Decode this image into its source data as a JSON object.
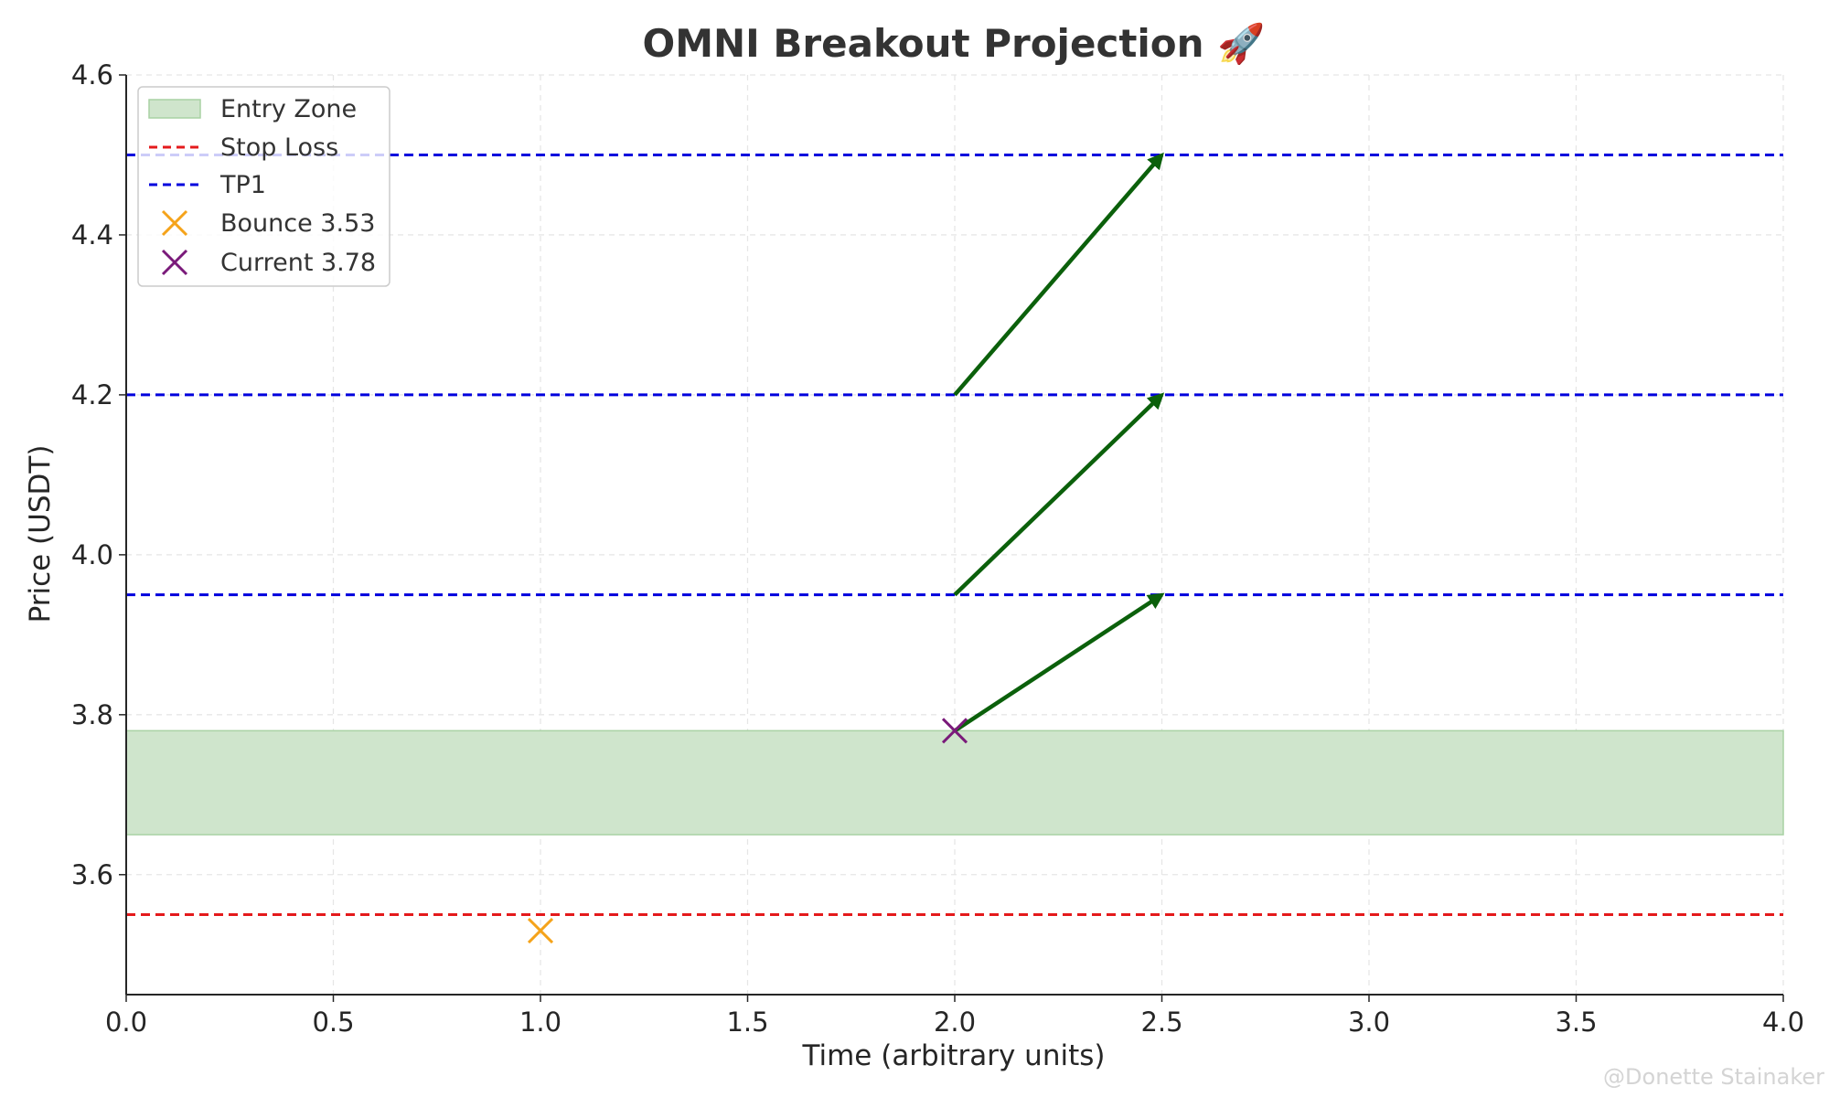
{
  "chart_data": {
    "type": "line",
    "title": "OMNI Breakout Projection 🚀",
    "xlabel": "Time (arbitrary units)",
    "ylabel": "Price (USDT)",
    "xlim": [
      0,
      4
    ],
    "ylim": [
      3.45,
      4.6
    ],
    "xticks": [
      "0.0",
      "0.5",
      "1.0",
      "1.5",
      "2.0",
      "2.5",
      "3.0",
      "3.5",
      "4.0"
    ],
    "yticks": [
      "3.6",
      "3.8",
      "4.0",
      "4.2",
      "4.4",
      "4.6"
    ],
    "grid": true,
    "legend_position": "upper-left",
    "entry_zone": {
      "label": "Entry Zone",
      "low": 3.65,
      "high": 3.78,
      "color": "#cfe5cc"
    },
    "stop_loss": {
      "label": "Stop Loss",
      "value": 3.55,
      "color": "#e41a1c"
    },
    "take_profits": {
      "label": "TP1",
      "color": "#0000dd",
      "values": [
        3.95,
        4.2,
        4.5
      ]
    },
    "points": [
      {
        "label": "Bounce 3.53",
        "x": 1.0,
        "y": 3.53,
        "color": "#f5a31a",
        "marker": "x"
      },
      {
        "label": "Current 3.78",
        "x": 2.0,
        "y": 3.78,
        "color": "#7a1a7a",
        "marker": "x"
      }
    ],
    "arrows": [
      {
        "from": [
          2.0,
          3.78
        ],
        "to": [
          2.5,
          3.95
        ]
      },
      {
        "from": [
          2.0,
          3.95
        ],
        "to": [
          2.5,
          4.2
        ]
      },
      {
        "from": [
          2.0,
          4.2
        ],
        "to": [
          2.5,
          4.5
        ]
      }
    ],
    "arrow_color": "#0b600b"
  },
  "watermark": "@Donette Stainaker"
}
